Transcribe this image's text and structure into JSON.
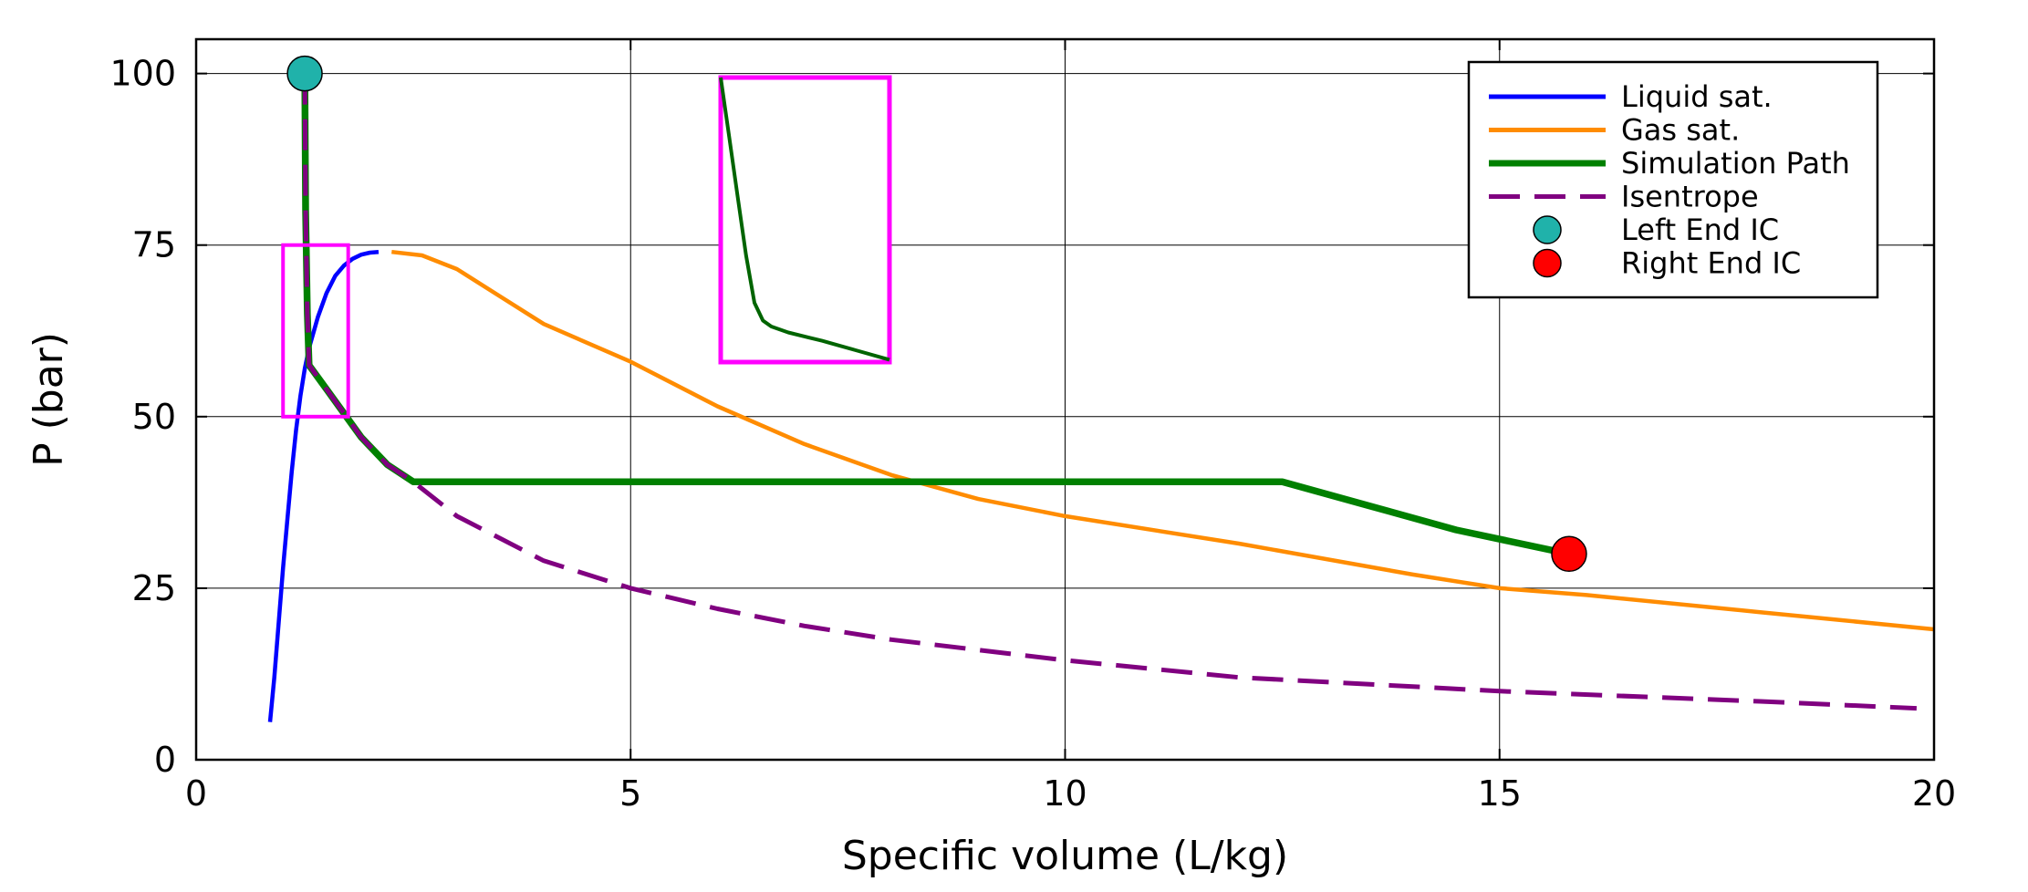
{
  "chart_data": {
    "type": "line",
    "xlabel": "Specific volume (L/kg)",
    "ylabel": "P (bar)",
    "xlim": [
      0,
      20
    ],
    "ylim": [
      0,
      105
    ],
    "xticks": [
      0,
      5,
      10,
      15,
      20
    ],
    "yticks": [
      0,
      25,
      50,
      75,
      100
    ],
    "xtick_labels": [
      "0",
      "5",
      "10",
      "15",
      "20"
    ],
    "ytick_labels": [
      "0",
      "25",
      "50",
      "75",
      "100"
    ],
    "grid": true,
    "legend_position": "top-right",
    "series": [
      {
        "name": "Liquid sat.",
        "color": "#0000ff",
        "style": "solid",
        "x": [
          0.85,
          0.9,
          0.95,
          1.0,
          1.05,
          1.1,
          1.15,
          1.2,
          1.25,
          1.3,
          1.4,
          1.5,
          1.6,
          1.7,
          1.8,
          1.9,
          2.0,
          2.1
        ],
        "y": [
          5.5,
          12,
          20,
          28,
          35,
          42,
          48,
          53,
          57,
          60,
          64.5,
          68,
          70.5,
          72,
          73,
          73.6,
          73.9,
          74
        ]
      },
      {
        "name": "Gas sat.",
        "color": "#ff8c00",
        "style": "solid",
        "x": [
          2.25,
          2.6,
          3.0,
          3.5,
          4.0,
          5.0,
          6.0,
          7.0,
          8.0,
          9.0,
          10.0,
          12.0,
          14.0,
          15.0,
          16.0,
          18.0,
          20.0
        ],
        "y": [
          74,
          73.5,
          71.5,
          67.5,
          63.5,
          58,
          51.5,
          46,
          41.5,
          38,
          35.5,
          31.5,
          27,
          25,
          24,
          21.5,
          19
        ]
      },
      {
        "name": "Simulation Path",
        "color": "#008000",
        "style": "solid",
        "x": [
          1.25,
          1.26,
          1.28,
          1.3,
          1.5,
          1.7,
          1.9,
          2.2,
          2.5,
          4.0,
          8.0,
          12.5,
          13.5,
          14.5,
          15.8
        ],
        "y": [
          100,
          80,
          65,
          57.5,
          54,
          50.5,
          47,
          43,
          40.5,
          40.5,
          40.5,
          40.5,
          37,
          33.5,
          30
        ]
      },
      {
        "name": "Isentrope",
        "color": "#800080",
        "style": "dashed",
        "x": [
          1.25,
          1.26,
          1.28,
          1.3,
          1.5,
          1.7,
          1.9,
          2.2,
          2.5,
          3.0,
          4.0,
          5.0,
          6.0,
          7.0,
          8.0,
          10.0,
          12.0,
          15.0,
          18.0,
          19.8
        ],
        "y": [
          100,
          80,
          65,
          57.5,
          54,
          50.5,
          47,
          43,
          40.5,
          35.5,
          29,
          25,
          22,
          19.5,
          17.5,
          14.5,
          12,
          10,
          8.5,
          7.5
        ]
      },
      {
        "name": "Left End IC",
        "color": "#20b2aa",
        "style": "marker",
        "x": [
          1.25
        ],
        "y": [
          100
        ]
      },
      {
        "name": "Right End IC",
        "color": "#ff0000",
        "style": "marker",
        "x": [
          15.8
        ],
        "y": [
          30
        ]
      }
    ],
    "highlight_box": {
      "color": "#ff00ff",
      "x": [
        1.0,
        1.75
      ],
      "y": [
        50,
        75
      ]
    },
    "inset": {
      "border_color": "#ff00ff",
      "line_color": "#006400",
      "x": [
        1.2,
        1.205,
        1.21,
        1.215,
        1.22,
        1.225,
        1.23,
        1.24,
        1.26,
        1.28,
        1.3
      ],
      "y": [
        75,
        70,
        65,
        60,
        56,
        54.5,
        54,
        53.5,
        52.8,
        52,
        51.2
      ],
      "x_range": [
        1.2,
        1.3
      ],
      "y_range": [
        51,
        75
      ]
    }
  }
}
